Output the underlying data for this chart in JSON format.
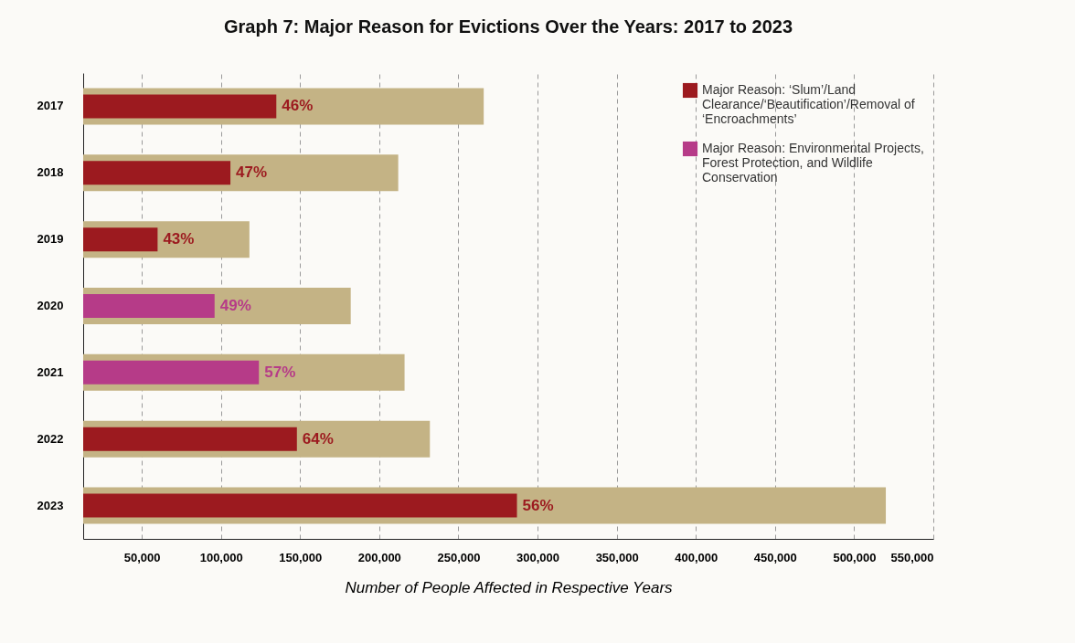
{
  "chart_data": {
    "type": "bar",
    "orientation": "horizontal",
    "title": "Graph 7: Major Reason for Evictions Over the Years: 2017 to 2023",
    "xlabel": "Number of People Affected in Respective Years",
    "categories": [
      "2017",
      "2018",
      "2019",
      "2020",
      "2021",
      "2022",
      "2023"
    ],
    "series": [
      {
        "color": "#c4b385",
        "values": [
          266000,
          212000,
          118000,
          182000,
          216000,
          232000,
          520000
        ]
      },
      {
        "name": "Major Reason: ‘Slum’/Land Clearance/‘Beautification’/Removal of ‘Encroachments’",
        "color": "#9c1a1f",
        "values": [
          135000,
          106000,
          60000,
          null,
          null,
          148000,
          287000
        ]
      },
      {
        "name": "Major Reason: Environmental Projects, Forest Protection, and Wildlife Conservation",
        "color": "#b63b88",
        "values": [
          null,
          null,
          null,
          96000,
          124000,
          null,
          null
        ]
      }
    ],
    "annotations": [
      {
        "text": "46%",
        "x": 135000,
        "y": "2017"
      },
      {
        "text": "47%",
        "x": 106000,
        "y": "2018"
      },
      {
        "text": "43%",
        "x": 60000,
        "y": "2019"
      },
      {
        "text": "49%",
        "x": 96000,
        "y": "2020"
      },
      {
        "text": "57%",
        "x": 124000,
        "y": "2021"
      },
      {
        "text": "64%",
        "x": 148000,
        "y": "2022"
      },
      {
        "text": "56%",
        "x": 287000,
        "y": "2023"
      }
    ],
    "xlim": [
      13000,
      550000
    ],
    "xticks": [
      {
        "value": 50000,
        "label": "50,000"
      },
      {
        "value": 100000,
        "label": "100,000"
      },
      {
        "value": 150000,
        "label": "150,000"
      },
      {
        "value": 200000,
        "label": "200,000"
      },
      {
        "value": 250000,
        "label": "250,000"
      },
      {
        "value": 300000,
        "label": "300,000"
      },
      {
        "value": 350000,
        "label": "350,000"
      },
      {
        "value": 400000,
        "label": "400,000"
      },
      {
        "value": 450000,
        "label": "450,000"
      },
      {
        "value": 500000,
        "label": "500,000"
      },
      {
        "value": 550000,
        "label": "550,000"
      }
    ],
    "grid": "x",
    "legend": "top right"
  }
}
